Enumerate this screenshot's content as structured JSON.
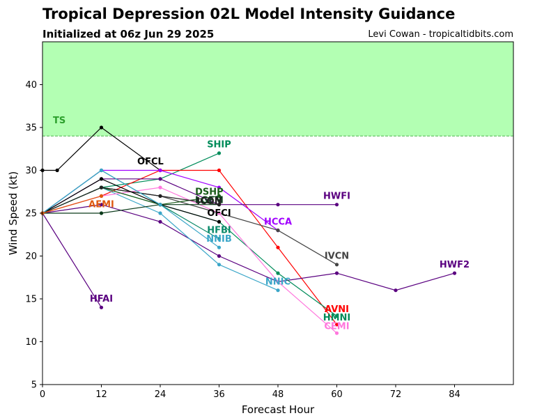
{
  "chart_data": {
    "type": "line",
    "title": "Tropical Depression 02L Model Intensity Guidance",
    "subtitle": "Initialized at 06z Jun 29 2025",
    "credit": "Levi Cowan - tropicaltidbits.com",
    "xlabel": "Forecast Hour",
    "ylabel": "Wind Speed (kt)",
    "xlim": [
      0,
      96
    ],
    "ylim": [
      5,
      45
    ],
    "xticks": [
      0,
      12,
      24,
      36,
      48,
      60,
      72,
      84
    ],
    "yticks": [
      5,
      10,
      15,
      20,
      25,
      30,
      35,
      40
    ],
    "grid": false,
    "ts_threshold": 34,
    "ts_label": "TS",
    "ts_color": "#2ca02c",
    "ts_fill": "#b3ffb3",
    "series": [
      {
        "name": "HFAI",
        "color": "#5a0080",
        "x": [
          0,
          12
        ],
        "y": [
          25,
          14
        ],
        "label_x": 12,
        "label_y": 15
      },
      {
        "name": "OFCL",
        "color": "#000000",
        "x": [
          0,
          3,
          12,
          24
        ],
        "y": [
          30,
          30,
          35,
          30
        ],
        "label_x": 22,
        "label_y": 31
      },
      {
        "name": "SHIP",
        "color": "#008c5a",
        "x": [
          0,
          12,
          24,
          36
        ],
        "y": [
          25,
          28,
          29,
          32
        ],
        "label_x": 36,
        "label_y": 33
      },
      {
        "name": "AVNI",
        "color": "#ff0000",
        "x": [
          0,
          12,
          24,
          36,
          48,
          60
        ],
        "y": [
          25,
          27,
          30,
          30,
          21,
          12
        ],
        "label_x": 60,
        "label_y": 13.8
      },
      {
        "name": "HCCA",
        "color": "#a000ff",
        "x": [
          0,
          12,
          24,
          36,
          48
        ],
        "y": [
          25,
          30,
          30,
          28,
          23
        ],
        "label_x": 48,
        "label_y": 24
      },
      {
        "name": "HWFI",
        "color": "#5a0080",
        "x": [
          0,
          12,
          24,
          36,
          48,
          60
        ],
        "y": [
          25,
          29,
          29,
          26,
          26,
          26
        ],
        "label_x": 60,
        "label_y": 27
      },
      {
        "name": "IVCN",
        "color": "#444444",
        "x": [
          0,
          12,
          24,
          36,
          48,
          60
        ],
        "y": [
          25,
          28,
          27,
          25,
          23,
          19
        ],
        "label_x": 60,
        "label_y": 20
      },
      {
        "name": "HWF2",
        "color": "#5a0080",
        "x": [
          0,
          12,
          24,
          36,
          48,
          60,
          72,
          84
        ],
        "y": [
          25,
          26,
          24,
          20,
          17,
          18,
          16,
          18
        ],
        "label_x": 84,
        "label_y": 19
      },
      {
        "name": "NNIC",
        "color": "#3aa6c8",
        "x": [
          0,
          12,
          24,
          36,
          48
        ],
        "y": [
          25,
          28,
          25,
          19,
          16
        ],
        "label_x": 48,
        "label_y": 17
      },
      {
        "name": "HMNI",
        "color": "#008c5a",
        "x": [
          0,
          12,
          24,
          36,
          48,
          60
        ],
        "y": [
          25,
          28,
          26,
          24,
          18,
          13
        ],
        "label_x": 60,
        "label_y": 12.8
      },
      {
        "name": "CEMI",
        "color": "#ff77dd",
        "x": [
          0,
          12,
          24,
          36,
          48,
          60
        ],
        "y": [
          25,
          27,
          28,
          25,
          17,
          11
        ],
        "label_x": 60,
        "label_y": 11.8
      },
      {
        "name": "DSHP",
        "color": "#1a5c1a",
        "x": [
          0,
          12,
          24,
          36
        ],
        "y": [
          25,
          28,
          26,
          27
        ],
        "label_x": 34,
        "label_y": 27.5
      },
      {
        "name": "LGEM",
        "color": "#0a3a1a",
        "x": [
          0,
          12,
          24,
          36
        ],
        "y": [
          25,
          25,
          26,
          26
        ],
        "label_x": 34,
        "label_y": 26.5
      },
      {
        "name": "ICON",
        "color": "#222222",
        "x": [
          0,
          12,
          24,
          36
        ],
        "y": [
          25,
          28,
          27,
          26
        ],
        "label_x": 34,
        "label_y": 26.4
      },
      {
        "name": "OFCI",
        "color": "#000000",
        "x": [
          0,
          12,
          24,
          36
        ],
        "y": [
          25,
          29,
          26,
          24
        ],
        "label_x": 36,
        "label_y": 25
      },
      {
        "name": "HFBI",
        "color": "#0a8a6a",
        "x": [
          0,
          12,
          24,
          36
        ],
        "y": [
          25,
          30,
          26,
          22
        ],
        "label_x": 36,
        "label_y": 23
      },
      {
        "name": "NNIB",
        "color": "#3aa6c8",
        "x": [
          0,
          12,
          24,
          36
        ],
        "y": [
          25,
          30,
          26,
          21
        ],
        "label_x": 36,
        "label_y": 22
      },
      {
        "name": "AEMI",
        "color": "#e05a10",
        "x": [
          0,
          12
        ],
        "y": [
          25,
          27
        ],
        "label_x": 12,
        "label_y": 26
      }
    ]
  }
}
